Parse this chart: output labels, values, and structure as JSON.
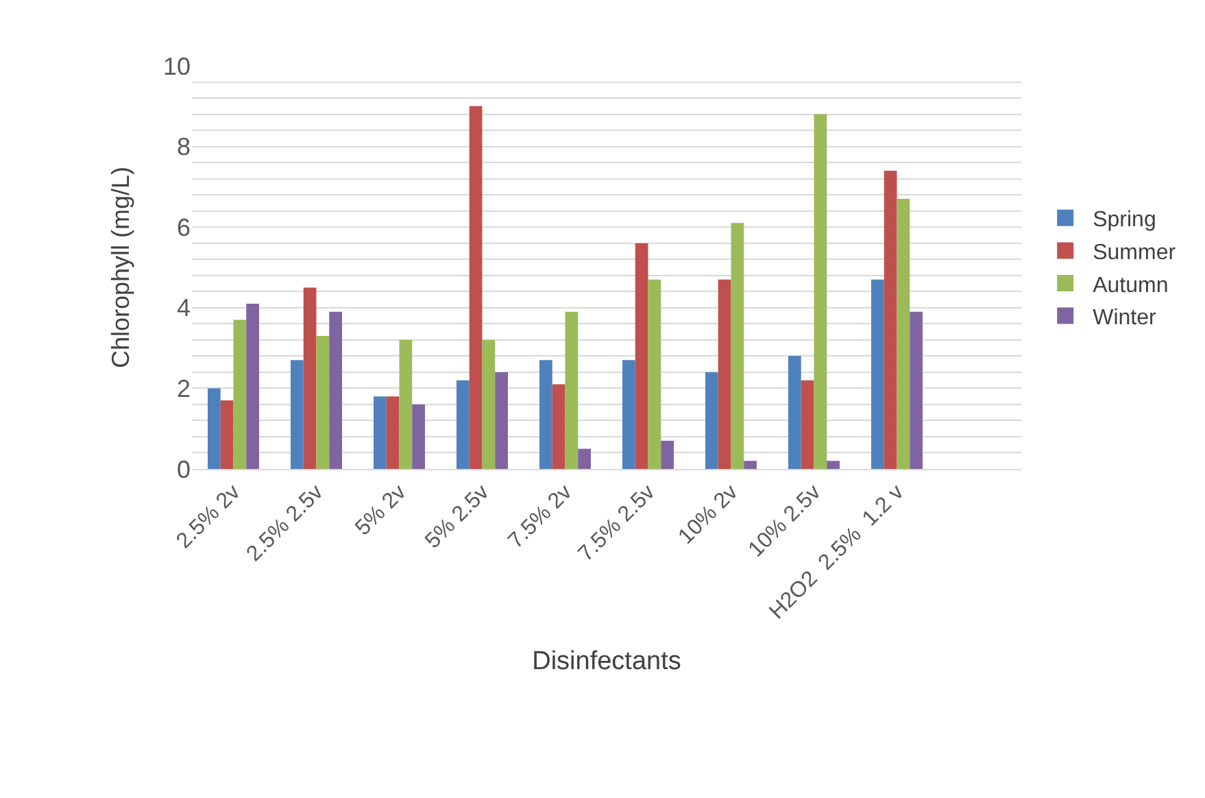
{
  "chart_data": {
    "type": "bar",
    "xlabel": "Disinfectants",
    "ylabel": "Chlorophyll (mg/L)",
    "categories": [
      "2.5% 2v",
      "2.5% 2.5v",
      "5% 2v",
      "5% 2.5v",
      "7.5% 2v",
      "7.5% 2.5v",
      "10% 2v",
      "10% 2.5v",
      "H2O2  2.5%  1.2 v",
      null
    ],
    "series": [
      {
        "name": "Spring",
        "color": "#4f81bd",
        "values": [
          2.0,
          2.7,
          1.8,
          2.2,
          2.7,
          2.7,
          2.4,
          2.8,
          4.7,
          null
        ]
      },
      {
        "name": "Summer",
        "color": "#c0504d",
        "values": [
          1.7,
          4.5,
          1.8,
          9.0,
          2.1,
          5.6,
          4.7,
          2.2,
          7.4,
          null
        ]
      },
      {
        "name": "Autumn",
        "color": "#9bbb59",
        "values": [
          3.7,
          3.3,
          3.2,
          3.2,
          3.9,
          4.7,
          6.1,
          8.8,
          6.7,
          null
        ]
      },
      {
        "name": "Winter",
        "color": "#8064a2",
        "values": [
          4.1,
          3.9,
          1.6,
          2.4,
          0.5,
          0.7,
          0.2,
          0.2,
          3.9,
          null
        ]
      }
    ],
    "ylim": [
      0,
      10
    ],
    "yticks": [
      0,
      {
        "value": 0.4,
        "label": null
      },
      {
        "value": 0.8,
        "label": null
      },
      {
        "value": 1.2,
        "label": null
      },
      {
        "value": 1.6,
        "label": null
      },
      2,
      {
        "value": 2.4,
        "label": null
      },
      {
        "value": 2.8,
        "label": null
      },
      {
        "value": 3.2,
        "label": null
      },
      {
        "value": 3.6,
        "label": null
      },
      4,
      {
        "value": 4.4,
        "label": null
      },
      {
        "value": 4.8,
        "label": null
      },
      {
        "value": 5.2,
        "label": null
      },
      {
        "value": 5.6,
        "label": null
      },
      6,
      {
        "value": 6.4,
        "label": null
      },
      {
        "value": 6.8,
        "label": null
      },
      {
        "value": 7.2,
        "label": null
      },
      {
        "value": 7.6,
        "label": null
      },
      8,
      {
        "value": 8.4,
        "label": null
      },
      {
        "value": 8.8,
        "label": null
      },
      {
        "value": 9.2,
        "label": null
      },
      {
        "value": 9.6,
        "label": null
      },
      10
    ],
    "grid": "y",
    "legend": "right"
  }
}
